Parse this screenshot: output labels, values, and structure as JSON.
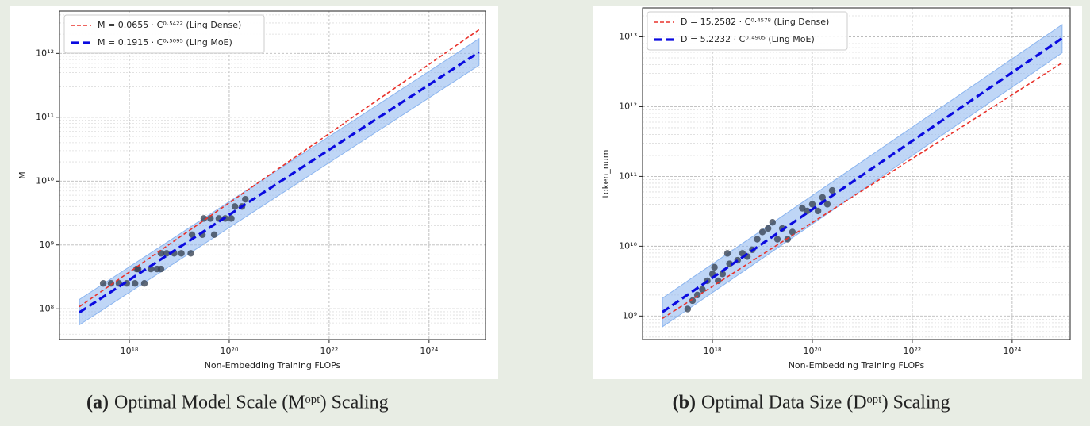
{
  "chart_data": [
    {
      "type": "scatter",
      "caption_label": "(a)",
      "caption": "Optimal Model Scale (Mᵒᵖᵗ) Scaling",
      "xlabel": "Non-Embedding Training FLOPs",
      "ylabel": "M",
      "log_x": true,
      "log_y": true,
      "grid": true,
      "minor_grid": true,
      "legend": "upper left",
      "xlim": [
        4e+16,
        1.35e+25
      ],
      "ylim": [
        33000000.0,
        4600000000000.0
      ],
      "xticks": [
        {
          "value": 1e+18,
          "label": "10¹⁸"
        },
        {
          "value": 1e+20,
          "label": "10²⁰"
        },
        {
          "value": 1e+22,
          "label": "10²²"
        },
        {
          "value": 1e+24,
          "label": "10²⁴"
        }
      ],
      "yticks": [
        {
          "value": 100000000.0,
          "label": "10⁸"
        },
        {
          "value": 1000000000.0,
          "label": "10⁹"
        },
        {
          "value": 10000000000.0,
          "label": "10¹⁰"
        },
        {
          "value": 100000000000.0,
          "label": "10¹¹"
        },
        {
          "value": 1000000000000.0,
          "label": "10¹²"
        }
      ],
      "lines": [
        {
          "name": "M = 0.0655 · C⁰·⁵⁴²² (Ling Dense)",
          "color": "#e8322b",
          "width": 1.6,
          "dash": "5 3",
          "x": [
            1e+17,
            1e+25
          ],
          "values": [
            108000000.0,
            2350000000000.0
          ]
        },
        {
          "name": "M = 0.1915 · C⁰·⁵⁰⁹⁵ (Ling MoE)",
          "color": "#0a0ae0",
          "width": 3.2,
          "dash": "10 5",
          "x": [
            1e+17,
            1e+25
          ],
          "values": [
            87800000.0,
            1046000000000.0
          ],
          "band_lower": [
            56000000.0,
            650000000000.0
          ],
          "band_upper": [
            140000000.0,
            1700000000000.0
          ],
          "band_color": "#8ab4ef"
        }
      ],
      "points": {
        "color": "#3a4556",
        "x": [
          3e+17,
          4.3e+17,
          6.2e+17,
          8.9e+17,
          1.3e+18,
          2e+18,
          1.4e+18,
          1.5e+18,
          2.7e+18,
          3.6e+18,
          4.3e+18,
          4.3e+18,
          5.6e+18,
          7.9e+18,
          1.1e+19,
          1.7e+19,
          1.8e+19,
          2.9e+19,
          5e+19,
          3.1e+19,
          4.2e+19,
          6.2e+19,
          8.3e+19,
          1.1e+20,
          1.3e+20,
          1.8e+20,
          2.1e+20
        ],
        "values": [
          250000000.0,
          250000000.0,
          250000000.0,
          250000000.0,
          250000000.0,
          250000000.0,
          420000000.0,
          420000000.0,
          420000000.0,
          420000000.0,
          420000000.0,
          740000000.0,
          740000000.0,
          740000000.0,
          740000000.0,
          740000000.0,
          1450000000.0,
          1450000000.0,
          1450000000.0,
          2600000000.0,
          2600000000.0,
          2600000000.0,
          2600000000.0,
          2600000000.0,
          4000000000.0,
          4000000000.0,
          5200000000.0
        ]
      }
    },
    {
      "type": "scatter",
      "caption_label": "(b)",
      "caption": "Optimal Data Size (Dᵒᵖᵗ) Scaling",
      "xlabel": "Non-Embedding Training FLOPs",
      "ylabel": "token_num",
      "log_x": true,
      "log_y": true,
      "grid": true,
      "minor_grid": true,
      "legend": "upper left",
      "xlim": [
        4e+16,
        1.45e+25
      ],
      "ylim": [
        460000000.0,
        26000000000000.0
      ],
      "xticks": [
        {
          "value": 1e+18,
          "label": "10¹⁸"
        },
        {
          "value": 1e+20,
          "label": "10²⁰"
        },
        {
          "value": 1e+22,
          "label": "10²²"
        },
        {
          "value": 1e+24,
          "label": "10²⁴"
        }
      ],
      "yticks": [
        {
          "value": 1000000000.0,
          "label": "10⁹"
        },
        {
          "value": 10000000000.0,
          "label": "10¹⁰"
        },
        {
          "value": 100000000000.0,
          "label": "10¹¹"
        },
        {
          "value": 1000000000000.0,
          "label": "10¹²"
        },
        {
          "value": 10000000000000.0,
          "label": "10¹³"
        }
      ],
      "lines": [
        {
          "name": "D = 15.2582 · C⁰·⁴⁵⁷⁸ (Ling Dense)",
          "color": "#e8322b",
          "width": 1.6,
          "dash": "5 3",
          "x": [
            1e+17,
            1e+25
          ],
          "values": [
            925000000.0,
            4250000000000.0
          ]
        },
        {
          "name": "D = 5.2232 · C⁰·⁴⁹⁰⁵ (Ling MoE)",
          "color": "#0a0ae0",
          "width": 3.2,
          "dash": "10 5",
          "x": [
            1e+17,
            1e+25
          ],
          "values": [
            1140000000.0,
            9550000000000.0
          ],
          "band_lower": [
            700000000.0,
            5900000000000.0
          ],
          "band_upper": [
            1800000000.0,
            15000000000000.0
          ],
          "band_color": "#8ab4ef"
        }
      ],
      "points": {
        "color": "#3a4556",
        "x": [
          3.2e+17,
          4e+17,
          5e+17,
          6.3e+17,
          7.9e+17,
          1e+18,
          1.1e+18,
          1.3e+18,
          1.6e+18,
          2e+18,
          2.2e+18,
          3.2e+18,
          4e+18,
          5e+18,
          6.3e+18,
          7.9e+18,
          1e+19,
          1.3e+19,
          1.6e+19,
          2e+19,
          2.5e+19,
          3.2e+19,
          4e+19,
          6.3e+19,
          7.9e+19,
          1e+20,
          1.3e+20,
          1.6e+20,
          2e+20,
          2.5e+20
        ],
        "values": [
          1260000000.0,
          1660000000.0,
          2000000000.0,
          2400000000.0,
          3200000000.0,
          4000000000.0,
          5000000000.0,
          3200000000.0,
          4000000000.0,
          7900000000.0,
          5600000000.0,
          6300000000.0,
          7900000000.0,
          7100000000.0,
          8900000000.0,
          12600000000.0,
          16000000000.0,
          18000000000.0,
          22000000000.0,
          12600000000.0,
          18000000000.0,
          12600000000.0,
          16000000000.0,
          35000000000.0,
          32000000000.0,
          40000000000.0,
          32000000000.0,
          50000000000.0,
          40000000000.0,
          63000000000.0
        ]
      }
    }
  ]
}
